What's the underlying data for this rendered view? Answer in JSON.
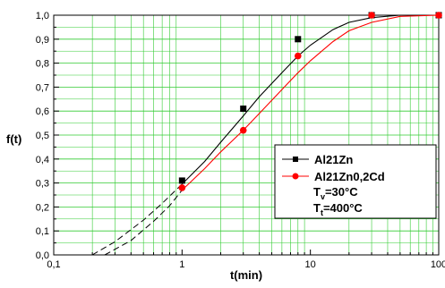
{
  "chart_data": {
    "type": "line",
    "xlabel": "t(min)",
    "ylabel": "f(t)",
    "x_scale": "log",
    "xlim": [
      0.1,
      100
    ],
    "ylim": [
      0.0,
      1.0
    ],
    "grid": true,
    "x_tick_labels": [
      {
        "value": 0.1,
        "label": "0,1"
      },
      {
        "value": 1,
        "label": "1"
      },
      {
        "value": 10,
        "label": "10"
      },
      {
        "value": 100,
        "label": "100"
      }
    ],
    "y_tick_labels": [
      {
        "value": 0.0,
        "label": "0,0"
      },
      {
        "value": 0.1,
        "label": "0,1"
      },
      {
        "value": 0.2,
        "label": "0,2"
      },
      {
        "value": 0.3,
        "label": "0,3"
      },
      {
        "value": 0.4,
        "label": "0,4"
      },
      {
        "value": 0.5,
        "label": "0,5"
      },
      {
        "value": 0.6,
        "label": "0,6"
      },
      {
        "value": 0.7,
        "label": "0,7"
      },
      {
        "value": 0.8,
        "label": "0,8"
      },
      {
        "value": 0.9,
        "label": "0,9"
      },
      {
        "value": 1.0,
        "label": "1,0"
      }
    ],
    "legend_position": "bottom-right",
    "series": [
      {
        "name": "Al21Zn",
        "color": "#000000",
        "marker": "square",
        "points": [
          [
            1,
            0.31
          ],
          [
            3,
            0.61
          ],
          [
            8,
            0.9
          ],
          [
            30,
            1.0
          ],
          [
            100,
            1.0
          ]
        ],
        "curve": [
          [
            0.2,
            0.0
          ],
          [
            0.3,
            0.055
          ],
          [
            0.5,
            0.145
          ],
          [
            0.7,
            0.215
          ],
          [
            1,
            0.295
          ],
          [
            1.5,
            0.39
          ],
          [
            2,
            0.47
          ],
          [
            3,
            0.58
          ],
          [
            4,
            0.66
          ],
          [
            6,
            0.76
          ],
          [
            8,
            0.83
          ],
          [
            10,
            0.875
          ],
          [
            15,
            0.94
          ],
          [
            20,
            0.97
          ],
          [
            30,
            0.99
          ],
          [
            50,
            1.0
          ],
          [
            100,
            1.0
          ]
        ],
        "extrapolated_below": 1
      },
      {
        "name": "Al21Zn0,2Cd",
        "color": "#ff0000",
        "marker": "circle",
        "points": [
          [
            1,
            0.28
          ],
          [
            3,
            0.52
          ],
          [
            8,
            0.83
          ],
          [
            30,
            1.0
          ],
          [
            100,
            1.0
          ]
        ],
        "curve": [
          [
            0.25,
            0.0
          ],
          [
            0.4,
            0.06
          ],
          [
            0.6,
            0.14
          ],
          [
            0.8,
            0.205
          ],
          [
            1,
            0.27
          ],
          [
            1.5,
            0.36
          ],
          [
            2,
            0.43
          ],
          [
            3,
            0.52
          ],
          [
            4,
            0.59
          ],
          [
            6,
            0.69
          ],
          [
            8,
            0.76
          ],
          [
            10,
            0.81
          ],
          [
            15,
            0.89
          ],
          [
            20,
            0.935
          ],
          [
            30,
            0.97
          ],
          [
            50,
            0.995
          ],
          [
            100,
            1.0
          ]
        ],
        "extrapolated_below": 1
      }
    ],
    "annotations": {
      "tv_main": "T",
      "tv_sub": "v",
      "tv_rest": "=30°C",
      "tt_main": "T",
      "tt_sub": "t",
      "tt_rest": "=400°C"
    }
  }
}
